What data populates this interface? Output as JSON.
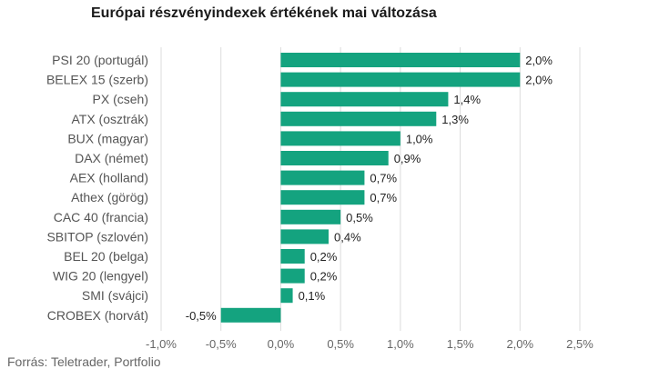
{
  "title": "Európai részvényindexek értékének mai változása",
  "source": "Forrás: Teletrader, Portfolio",
  "colors": {
    "bar": "#14a37f",
    "grid": "#dcdcdc"
  },
  "chart_data": {
    "type": "bar",
    "orientation": "horizontal",
    "title": "Európai részvényindexek értékének mai változása",
    "categories": [
      "PSI 20 (portugál)",
      "BELEX 15 (szerb)",
      "PX (cseh)",
      "ATX (osztrák)",
      "BUX (magyar)",
      "DAX (német)",
      "AEX (holland)",
      "Athex (görög)",
      "CAC 40 (francia)",
      "SBITOP (szlovén)",
      "BEL 20 (belga)",
      "WIG 20 (lengyel)",
      "SMI (svájci)",
      "CROBEX (horvát)"
    ],
    "values": [
      2.0,
      2.0,
      1.4,
      1.3,
      1.0,
      0.9,
      0.7,
      0.7,
      0.5,
      0.4,
      0.2,
      0.2,
      0.1,
      -0.5
    ],
    "value_labels": [
      "2,0%",
      "2,0%",
      "1,4%",
      "1,3%",
      "1,0%",
      "0,9%",
      "0,7%",
      "0,7%",
      "0,5%",
      "0,4%",
      "0,2%",
      "0,2%",
      "0,1%",
      "-0,5%"
    ],
    "xlim": [
      -1.0,
      2.5
    ],
    "xticks": [
      -1.0,
      -0.5,
      0.0,
      0.5,
      1.0,
      1.5,
      2.0,
      2.5
    ],
    "xtick_labels": [
      "-1,0%",
      "-0,5%",
      "0,0%",
      "0,5%",
      "1,0%",
      "1,5%",
      "2,0%",
      "2,5%"
    ],
    "grid": true,
    "legend": "none"
  }
}
